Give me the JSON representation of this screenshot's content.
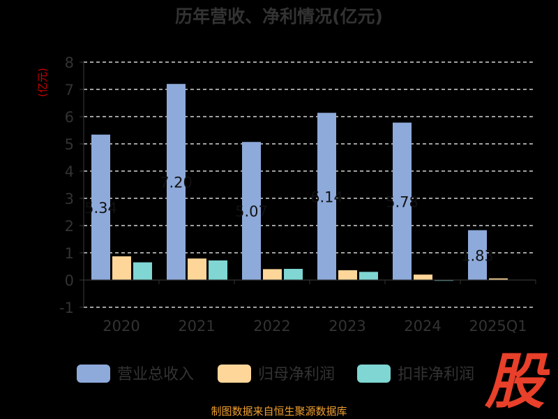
{
  "chart_data": {
    "type": "bar",
    "title": "历年营收、净利情况(亿元)",
    "ylabel": "(亿元)",
    "ylim": [
      -1,
      8
    ],
    "yticks": [
      -1,
      0,
      1,
      2,
      3,
      4,
      5,
      6,
      7,
      8
    ],
    "grid": true,
    "legend_position": "bottom",
    "categories": [
      "2020",
      "2021",
      "2022",
      "2023",
      "2024",
      "2025Q1"
    ],
    "series": [
      {
        "name": "营业总收入",
        "color": "#8eaadb",
        "values": [
          5.34,
          7.2,
          5.07,
          6.14,
          5.78,
          1.83
        ],
        "labels": [
          "5.34",
          "7.20",
          "5.07",
          "6.14",
          "5.78",
          "1.83"
        ]
      },
      {
        "name": "归母净利润",
        "color": "#ffd699",
        "values": [
          0.87,
          0.79,
          0.4,
          0.36,
          0.2,
          0.06
        ]
      },
      {
        "name": "扣非净利润",
        "color": "#7fd6d3",
        "values": [
          0.65,
          0.72,
          0.41,
          0.3,
          -0.03,
          null
        ]
      }
    ]
  },
  "source_note": "制图数据来自恒生聚源数据库",
  "logo_text": "股"
}
